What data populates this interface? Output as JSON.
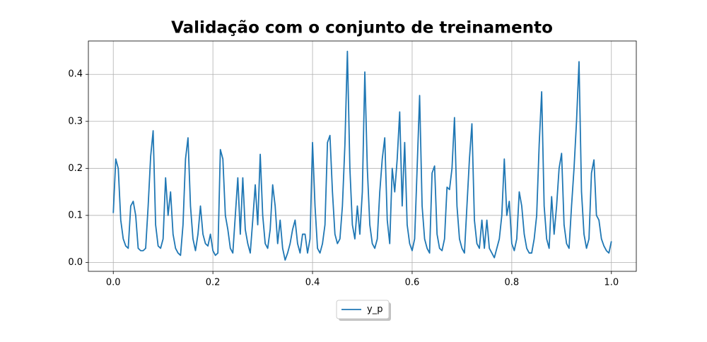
{
  "chart_data": {
    "type": "line",
    "title": "Validação com o conjunto de treinamento",
    "x": [
      0,
      0.005,
      0.01,
      0.015,
      0.02,
      0.025,
      0.03,
      0.035,
      0.04,
      0.045,
      0.05,
      0.055,
      0.06,
      0.065,
      0.07,
      0.075,
      0.08,
      0.085,
      0.09,
      0.095,
      0.1,
      0.105,
      0.11,
      0.115,
      0.12,
      0.125,
      0.13,
      0.135,
      0.14,
      0.145,
      0.15,
      0.155,
      0.16,
      0.165,
      0.17,
      0.175,
      0.18,
      0.185,
      0.19,
      0.195,
      0.2,
      0.205,
      0.21,
      0.215,
      0.22,
      0.225,
      0.23,
      0.235,
      0.24,
      0.245,
      0.25,
      0.255,
      0.26,
      0.265,
      0.27,
      0.275,
      0.28,
      0.285,
      0.29,
      0.295,
      0.3,
      0.305,
      0.31,
      0.315,
      0.32,
      0.325,
      0.33,
      0.335,
      0.34,
      0.345,
      0.35,
      0.355,
      0.36,
      0.365,
      0.37,
      0.375,
      0.38,
      0.385,
      0.39,
      0.395,
      0.4,
      0.405,
      0.41,
      0.415,
      0.42,
      0.425,
      0.43,
      0.435,
      0.44,
      0.445,
      0.45,
      0.455,
      0.46,
      0.465,
      0.47,
      0.475,
      0.48,
      0.485,
      0.49,
      0.495,
      0.5,
      0.505,
      0.51,
      0.515,
      0.52,
      0.525,
      0.53,
      0.535,
      0.54,
      0.545,
      0.55,
      0.555,
      0.56,
      0.565,
      0.57,
      0.575,
      0.58,
      0.585,
      0.59,
      0.595,
      0.6,
      0.605,
      0.61,
      0.615,
      0.62,
      0.625,
      0.63,
      0.635,
      0.64,
      0.645,
      0.65,
      0.655,
      0.66,
      0.665,
      0.67,
      0.675,
      0.68,
      0.685,
      0.69,
      0.695,
      0.7,
      0.705,
      0.71,
      0.715,
      0.72,
      0.725,
      0.73,
      0.735,
      0.74,
      0.745,
      0.75,
      0.755,
      0.76,
      0.765,
      0.77,
      0.775,
      0.78,
      0.785,
      0.79,
      0.795,
      0.8,
      0.805,
      0.81,
      0.815,
      0.82,
      0.825,
      0.83,
      0.835,
      0.84,
      0.845,
      0.85,
      0.855,
      0.86,
      0.865,
      0.87,
      0.875,
      0.88,
      0.885,
      0.89,
      0.895,
      0.9,
      0.905,
      0.91,
      0.915,
      0.92,
      0.925,
      0.93,
      0.935,
      0.94,
      0.945,
      0.95,
      0.955,
      0.96,
      0.965,
      0.97,
      0.975,
      0.98,
      0.985,
      0.99,
      0.995,
      1
    ],
    "series": [
      {
        "name": "y_p",
        "color": "#1f77b4",
        "values": [
          0.105,
          0.22,
          0.2,
          0.09,
          0.05,
          0.035,
          0.03,
          0.12,
          0.13,
          0.1,
          0.03,
          0.025,
          0.025,
          0.03,
          0.12,
          0.225,
          0.28,
          0.08,
          0.035,
          0.03,
          0.05,
          0.18,
          0.1,
          0.15,
          0.06,
          0.03,
          0.02,
          0.015,
          0.08,
          0.22,
          0.265,
          0.12,
          0.05,
          0.025,
          0.06,
          0.12,
          0.06,
          0.04,
          0.035,
          0.06,
          0.025,
          0.015,
          0.02,
          0.24,
          0.22,
          0.1,
          0.07,
          0.03,
          0.02,
          0.1,
          0.18,
          0.06,
          0.18,
          0.07,
          0.04,
          0.02,
          0.09,
          0.165,
          0.08,
          0.23,
          0.1,
          0.04,
          0.03,
          0.07,
          0.165,
          0.12,
          0.04,
          0.09,
          0.03,
          0.005,
          0.02,
          0.04,
          0.07,
          0.09,
          0.04,
          0.02,
          0.06,
          0.06,
          0.02,
          0.05,
          0.255,
          0.12,
          0.03,
          0.02,
          0.04,
          0.08,
          0.255,
          0.27,
          0.15,
          0.06,
          0.04,
          0.05,
          0.12,
          0.25,
          0.449,
          0.2,
          0.08,
          0.05,
          0.12,
          0.06,
          0.15,
          0.405,
          0.2,
          0.08,
          0.04,
          0.03,
          0.05,
          0.15,
          0.22,
          0.265,
          0.09,
          0.04,
          0.2,
          0.15,
          0.22,
          0.32,
          0.12,
          0.255,
          0.08,
          0.04,
          0.025,
          0.05,
          0.2,
          0.355,
          0.12,
          0.05,
          0.03,
          0.02,
          0.19,
          0.205,
          0.06,
          0.03,
          0.025,
          0.05,
          0.16,
          0.155,
          0.2,
          0.308,
          0.12,
          0.05,
          0.03,
          0.02,
          0.12,
          0.22,
          0.295,
          0.09,
          0.04,
          0.03,
          0.09,
          0.03,
          0.09,
          0.03,
          0.02,
          0.01,
          0.03,
          0.05,
          0.1,
          0.22,
          0.1,
          0.13,
          0.04,
          0.025,
          0.05,
          0.15,
          0.12,
          0.06,
          0.03,
          0.02,
          0.02,
          0.05,
          0.1,
          0.25,
          0.363,
          0.12,
          0.05,
          0.03,
          0.14,
          0.06,
          0.12,
          0.2,
          0.232,
          0.08,
          0.04,
          0.03,
          0.12,
          0.2,
          0.3,
          0.427,
          0.15,
          0.06,
          0.03,
          0.05,
          0.19,
          0.218,
          0.1,
          0.09,
          0.05,
          0.035,
          0.025,
          0.02,
          0.045
        ]
      }
    ],
    "xlim": [
      -0.05,
      1.05
    ],
    "xticks": [
      {
        "value": 0,
        "label": "0.0"
      },
      0.2,
      0.4,
      0.6,
      0.8,
      {
        "value": 1,
        "label": "1.0"
      }
    ],
    "ylim": [
      -0.019,
      0.471
    ],
    "yticks": [
      {
        "value": 0,
        "label": "0.0"
      },
      0.1,
      0.2,
      0.3,
      0.4
    ],
    "grid": true,
    "legend": "lower center"
  }
}
